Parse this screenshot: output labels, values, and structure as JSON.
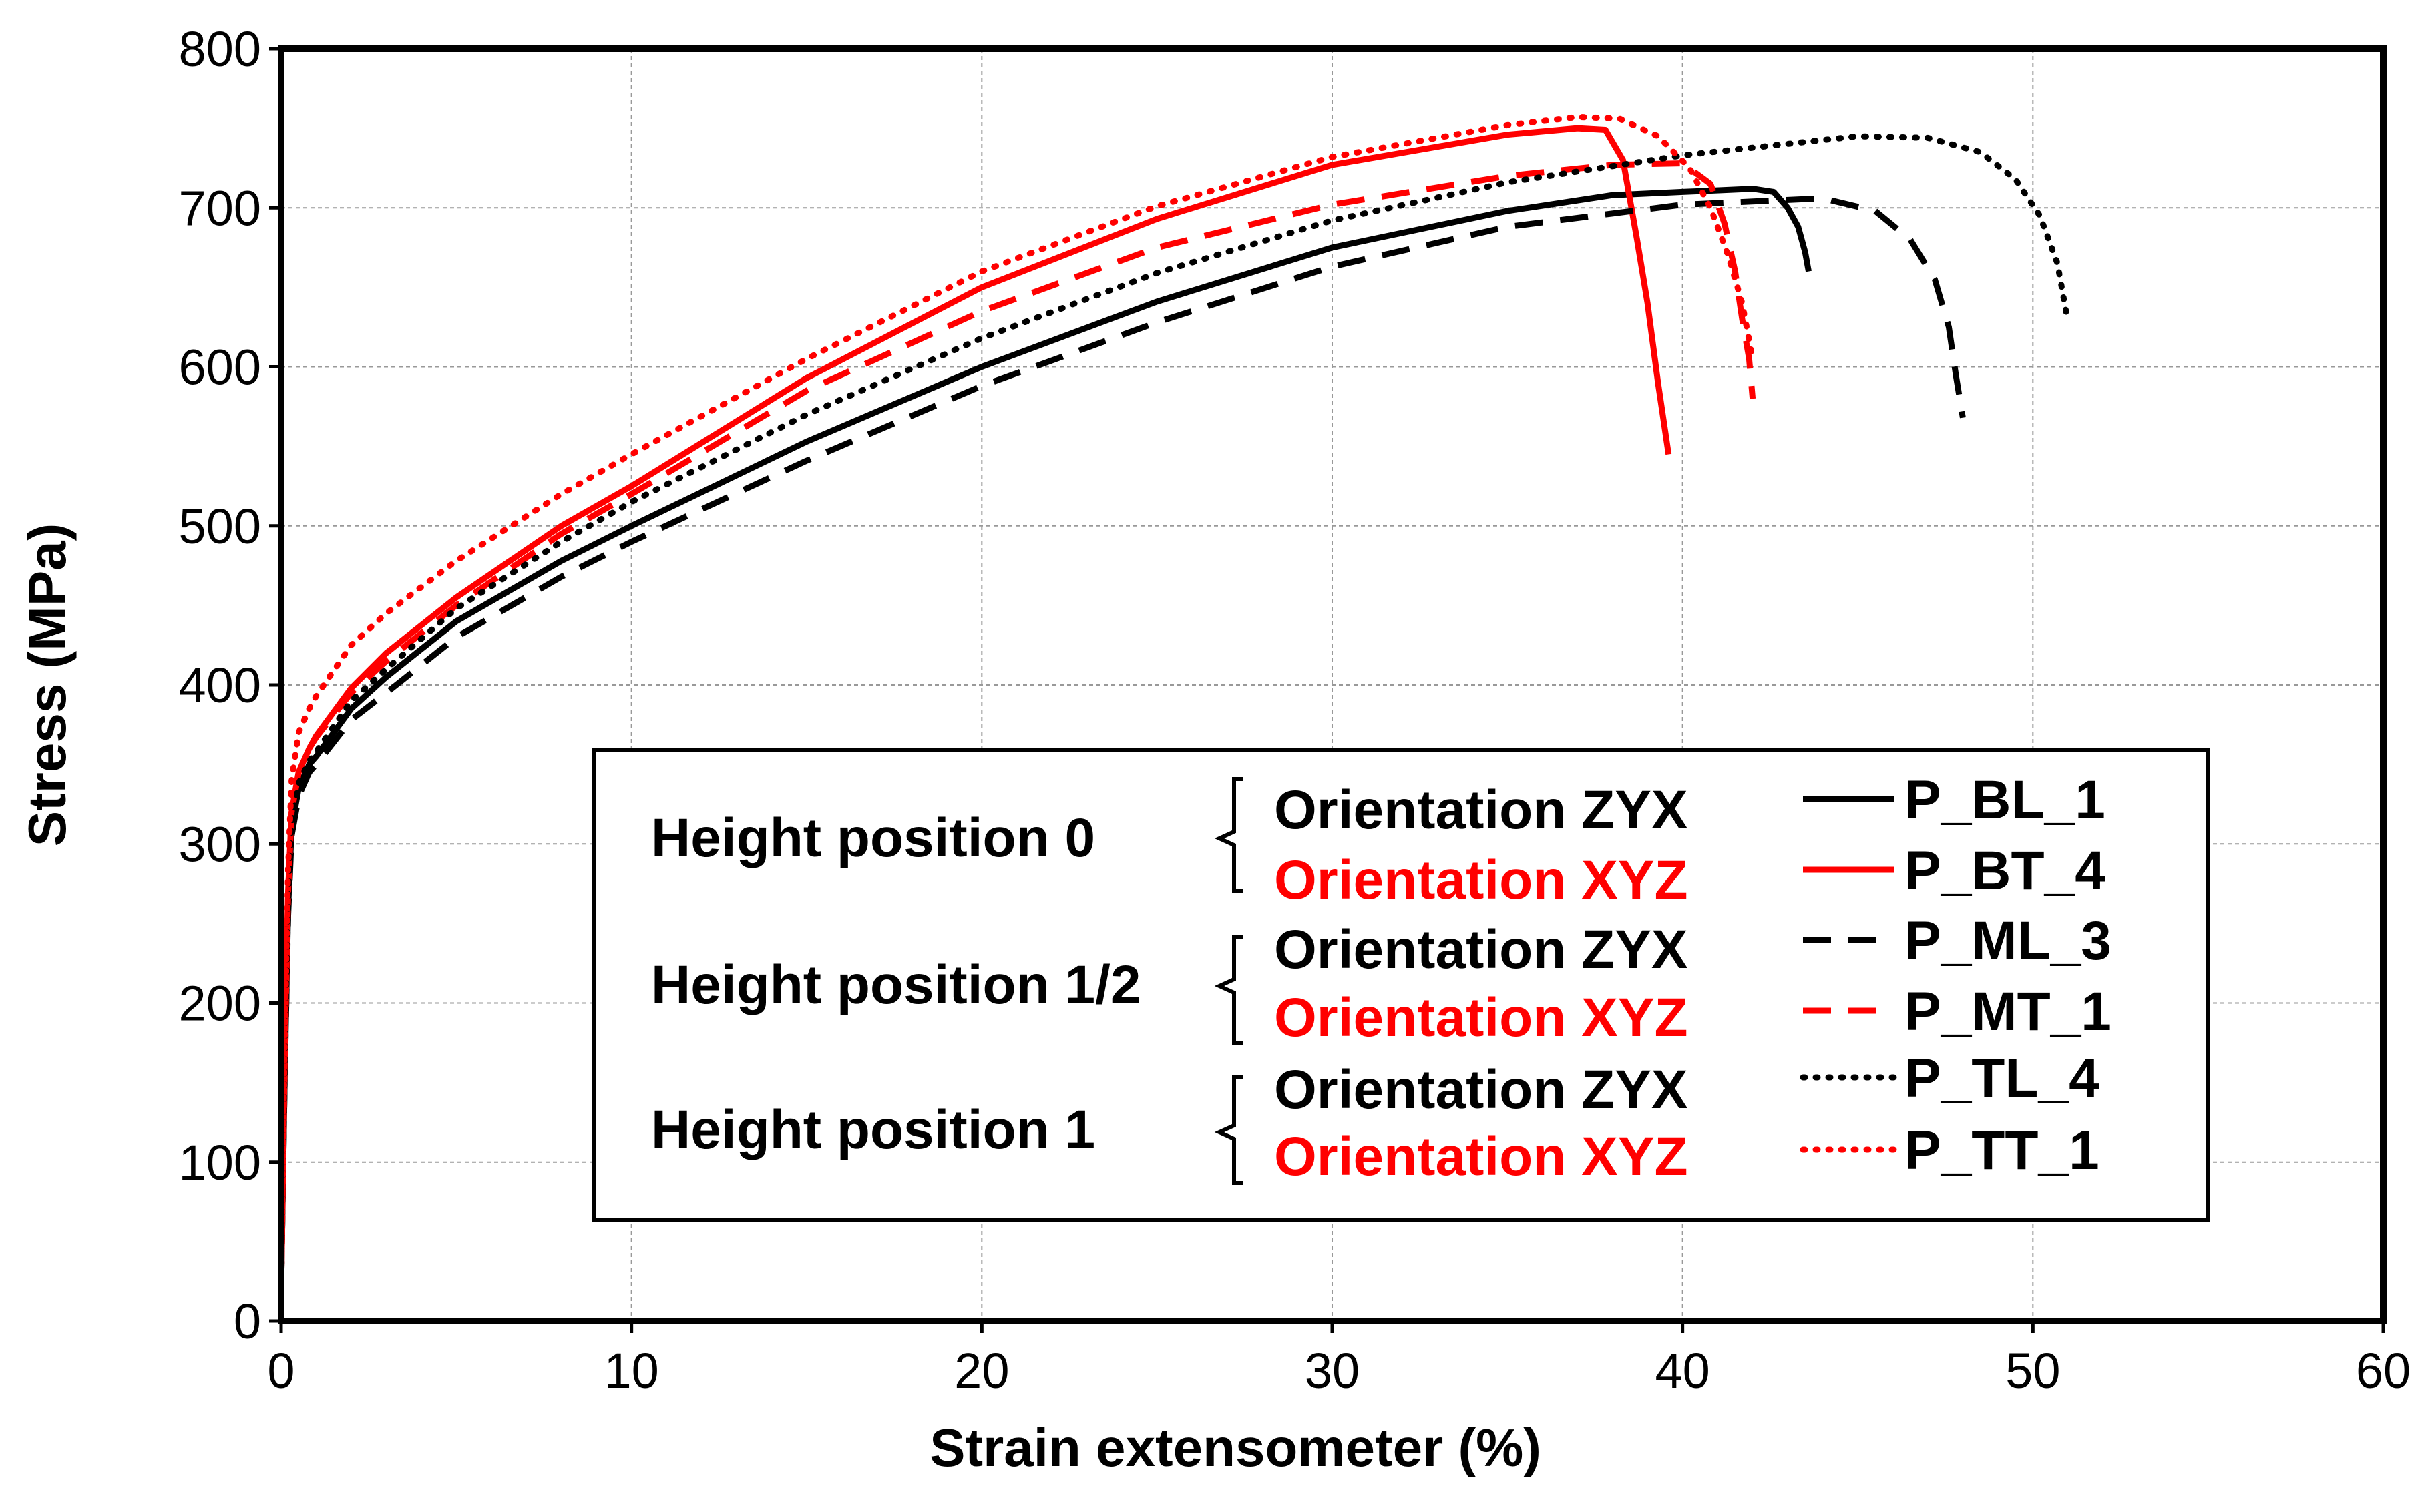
{
  "chart_data": {
    "type": "line",
    "xlabel": "Strain extensometer (%)",
    "ylabel": "Stress (MPa)",
    "xlim": [
      0,
      60
    ],
    "ylim": [
      0,
      800
    ],
    "x_ticks": [
      0,
      10,
      20,
      30,
      40,
      50,
      60
    ],
    "y_ticks": [
      0,
      100,
      200,
      300,
      400,
      500,
      600,
      700,
      800
    ],
    "x_tick_labels": [
      "0",
      "10",
      "20",
      "30",
      "40",
      "50",
      "60"
    ],
    "y_tick_labels": [
      "0",
      "100",
      "200",
      "300",
      "400",
      "500",
      "600",
      "700",
      "800"
    ],
    "grid": true,
    "legend_position": "lower-right",
    "colors": {
      "black": "#000000",
      "red": "#ff0000"
    },
    "groups": [
      {
        "label": "Height position 0",
        "orientations": [
          "Orientation ZYX",
          "Orientation XYZ"
        ]
      },
      {
        "label": "Height position 1/2",
        "orientations": [
          "Orientation ZYX",
          "Orientation XYZ"
        ]
      },
      {
        "label": "Height position 1",
        "orientations": [
          "Orientation ZYX",
          "Orientation XYZ"
        ]
      }
    ],
    "series": [
      {
        "name": "P_BL_1",
        "color": "black",
        "style": "solid",
        "x": [
          0,
          0.1,
          0.2,
          0.3,
          0.5,
          0.8,
          1,
          2,
          3,
          5,
          8,
          10,
          15,
          20,
          25,
          30,
          35,
          38,
          40,
          42,
          42.6,
          43,
          43.3,
          43.5,
          43.6
        ],
        "y": [
          20,
          150,
          260,
          310,
          335,
          350,
          355,
          385,
          405,
          440,
          478,
          500,
          553,
          600,
          641,
          675,
          698,
          708,
          710,
          712,
          710,
          700,
          688,
          672,
          660
        ]
      },
      {
        "name": "P_BT_4",
        "color": "red",
        "style": "solid",
        "x": [
          0,
          0.1,
          0.2,
          0.3,
          0.5,
          0.8,
          1,
          2,
          3,
          5,
          8,
          10,
          15,
          20,
          25,
          30,
          35,
          37,
          37.8,
          38.3,
          38.7,
          39.0,
          39.3,
          39.6
        ],
        "y": [
          20,
          160,
          270,
          320,
          345,
          360,
          368,
          398,
          420,
          455,
          500,
          525,
          593,
          650,
          693,
          727,
          746,
          750,
          749,
          730,
          680,
          640,
          590,
          545
        ]
      },
      {
        "name": "P_ML_3",
        "color": "black",
        "style": "dashed",
        "x": [
          0,
          0.1,
          0.2,
          0.3,
          0.5,
          0.8,
          1,
          2,
          3,
          5,
          8,
          10,
          15,
          20,
          25,
          30,
          35,
          40,
          44,
          45.5,
          46.5,
          47.2,
          47.6,
          47.8,
          48
        ],
        "y": [
          20,
          150,
          255,
          305,
          330,
          345,
          350,
          378,
          395,
          430,
          468,
          490,
          541,
          588,
          628,
          663,
          688,
          702,
          706,
          698,
          680,
          655,
          625,
          595,
          568
        ]
      },
      {
        "name": "P_MT_1",
        "color": "red",
        "style": "dashed",
        "x": [
          0,
          0.1,
          0.2,
          0.3,
          0.5,
          0.8,
          1,
          2,
          3,
          5,
          8,
          10,
          15,
          20,
          25,
          30,
          35,
          38,
          40,
          40.8,
          41.2,
          41.5,
          41.7,
          41.9,
          42
        ],
        "y": [
          20,
          160,
          270,
          320,
          345,
          360,
          367,
          395,
          415,
          450,
          495,
          520,
          585,
          635,
          675,
          702,
          720,
          727,
          728,
          715,
          690,
          660,
          630,
          605,
          580
        ]
      },
      {
        "name": "P_TL_4",
        "color": "black",
        "style": "dotted",
        "x": [
          0,
          0.1,
          0.2,
          0.3,
          0.5,
          0.8,
          1,
          2,
          3,
          5,
          8,
          10,
          15,
          20,
          25,
          30,
          35,
          40,
          45,
          47,
          48.5,
          49.5,
          50.2,
          50.7,
          51
        ],
        "y": [
          20,
          155,
          262,
          312,
          338,
          352,
          358,
          390,
          410,
          448,
          490,
          515,
          570,
          618,
          659,
          692,
          716,
          733,
          745,
          744,
          735,
          718,
          695,
          665,
          628
        ]
      },
      {
        "name": "P_TT_1",
        "color": "red",
        "style": "dotted",
        "x": [
          0,
          0.1,
          0.2,
          0.3,
          0.5,
          0.8,
          1,
          2,
          3,
          5,
          8,
          10,
          15,
          20,
          25,
          30,
          35,
          37,
          38.2,
          39.3,
          40.2,
          40.8,
          41.3,
          41.7,
          42
        ],
        "y": [
          20,
          170,
          285,
          340,
          370,
          385,
          393,
          425,
          445,
          478,
          520,
          545,
          605,
          660,
          701,
          732,
          752,
          757,
          756,
          745,
          725,
          700,
          670,
          640,
          605
        ]
      }
    ]
  }
}
